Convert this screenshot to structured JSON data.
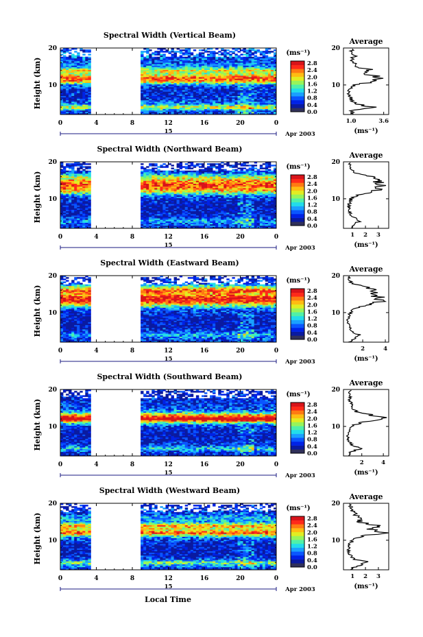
{
  "colorbar_unit": "(ms⁻¹)",
  "colorbar_ticks": [
    "2.8",
    "2.4",
    "2.0",
    "1.6",
    "1.2",
    "0.8",
    "0.4",
    "0.0"
  ],
  "colorbar_colors": [
    "#30305a",
    "#0a1aa0",
    "#0022e6",
    "#0a56ff",
    "#1aa0ff",
    "#22dcea",
    "#50f0a8",
    "#98f45a",
    "#e2ec22",
    "#ffbc12",
    "#ff7a12",
    "#ff2a1a",
    "#d8141a"
  ],
  "date_label": "Apr 2003",
  "day_label": "15",
  "xlabel_common": "Local Time",
  "average_title": "Average",
  "average_xunit": "(ms⁻¹)",
  "chart_data": [
    {
      "type": "heatmap",
      "title": "Spectral Width (Vertical Beam)",
      "ylabel": "Height (km)",
      "x_ticks": [
        "0",
        "4",
        "8",
        "12",
        "16",
        "20",
        "0"
      ],
      "y_ticks": [
        "20",
        "10"
      ],
      "xlim": [
        0,
        24
      ],
      "ylim": [
        2,
        20
      ],
      "missing_intervals_hours": [
        [
          3.5,
          8.8
        ]
      ],
      "profile": {
        "title": "Average",
        "x_ticks": [
          "1.0",
          "3.6"
        ],
        "xlim": [
          0.4,
          4.0
        ],
        "y_ticks": [
          "20",
          "10"
        ],
        "heights_km": [
          2,
          3,
          4,
          5,
          6,
          7,
          8,
          9,
          10,
          11,
          12,
          13,
          14,
          15,
          16,
          17,
          18,
          19,
          20
        ],
        "values": [
          1.0,
          1.1,
          2.6,
          1.3,
          1.0,
          0.9,
          0.8,
          0.9,
          1.3,
          2.9,
          3.3,
          2.2,
          2.6,
          1.5,
          1.2,
          1.1,
          1.3,
          1.0,
          1.1
        ]
      }
    },
    {
      "type": "heatmap",
      "title": "Spectral Width (Northward Beam)",
      "ylabel": "Height (km)",
      "x_ticks": [
        "0",
        "4",
        "8",
        "12",
        "16",
        "20",
        "0"
      ],
      "y_ticks": [
        "20",
        "10"
      ],
      "xlim": [
        0,
        24
      ],
      "ylim": [
        2,
        20
      ],
      "missing_intervals_hours": [
        [
          3.5,
          8.8
        ]
      ],
      "profile": {
        "title": "Average",
        "x_ticks": [
          "1",
          "2",
          "3"
        ],
        "xlim": [
          0.3,
          3.8
        ],
        "y_ticks": [
          "20",
          "10"
        ],
        "heights_km": [
          2,
          3,
          4,
          5,
          6,
          7,
          8,
          9,
          10,
          11,
          12,
          13,
          14,
          15,
          16,
          17,
          18,
          19,
          20
        ],
        "values": [
          0.9,
          1.1,
          1.5,
          1.0,
          0.8,
          0.7,
          0.7,
          0.8,
          0.9,
          1.4,
          2.6,
          3.1,
          3.3,
          2.8,
          2.3,
          1.2,
          0.9,
          0.8,
          0.7
        ]
      }
    },
    {
      "type": "heatmap",
      "title": "Spectral Width (Eastward Beam)",
      "ylabel": "Height (km)",
      "x_ticks": [
        "0",
        "4",
        "8",
        "12",
        "16",
        "20",
        "0"
      ],
      "y_ticks": [
        "20",
        "10"
      ],
      "xlim": [
        0,
        24
      ],
      "ylim": [
        2,
        20
      ],
      "missing_intervals_hours": [
        [
          3.5,
          8.8
        ]
      ],
      "profile": {
        "title": "Average",
        "x_ticks": [
          "2",
          "4"
        ],
        "xlim": [
          0.3,
          4.3
        ],
        "y_ticks": [
          "20",
          "10"
        ],
        "heights_km": [
          2,
          3,
          4,
          5,
          6,
          7,
          8,
          9,
          10,
          11,
          12,
          13,
          14,
          15,
          16,
          17,
          18,
          19,
          20
        ],
        "values": [
          0.8,
          1.2,
          1.6,
          1.0,
          0.8,
          0.7,
          0.7,
          0.8,
          0.9,
          1.2,
          2.2,
          3.4,
          3.6,
          2.8,
          3.3,
          2.2,
          1.0,
          0.8,
          0.7
        ]
      }
    },
    {
      "type": "heatmap",
      "title": "Spectral Width (Southward Beam)",
      "ylabel": "Height (km)",
      "x_ticks": [
        "0",
        "4",
        "8",
        "12",
        "16",
        "20",
        "0"
      ],
      "y_ticks": [
        "20",
        "10"
      ],
      "xlim": [
        0,
        24
      ],
      "ylim": [
        2,
        20
      ],
      "missing_intervals_hours": [
        [
          3.5,
          8.8
        ]
      ],
      "profile": {
        "title": "Average",
        "x_ticks": [
          "2",
          "4"
        ],
        "xlim": [
          0.3,
          4.5
        ],
        "y_ticks": [
          "20",
          "10"
        ],
        "heights_km": [
          2,
          3,
          4,
          5,
          6,
          7,
          8,
          9,
          10,
          11,
          12,
          13,
          14,
          15,
          16,
          17,
          18,
          19,
          20
        ],
        "values": [
          0.8,
          1.0,
          1.8,
          1.1,
          0.8,
          0.7,
          0.7,
          0.8,
          1.0,
          1.9,
          4.2,
          3.0,
          1.5,
          1.1,
          1.0,
          0.9,
          0.9,
          0.8,
          0.9
        ]
      }
    },
    {
      "type": "heatmap",
      "title": "Spectral Width (Westward Beam)",
      "ylabel": "Height (km)",
      "x_ticks": [
        "0",
        "4",
        "8",
        "12",
        "16",
        "20",
        "0"
      ],
      "y_ticks": [
        "20",
        "10"
      ],
      "xlim": [
        0,
        24
      ],
      "ylim": [
        2,
        20
      ],
      "missing_intervals_hours": [
        [
          3.5,
          8.8
        ]
      ],
      "profile": {
        "title": "Average",
        "x_ticks": [
          "1",
          "2",
          "3"
        ],
        "xlim": [
          0.3,
          3.8
        ],
        "y_ticks": [
          "20",
          "10"
        ],
        "heights_km": [
          2,
          3,
          4,
          5,
          6,
          7,
          8,
          9,
          10,
          11,
          12,
          13,
          14,
          15,
          16,
          17,
          18,
          19,
          20
        ],
        "values": [
          0.8,
          1.3,
          2.2,
          1.0,
          0.8,
          0.7,
          0.7,
          0.8,
          1.0,
          1.6,
          3.3,
          2.4,
          2.9,
          1.5,
          1.6,
          1.2,
          1.0,
          0.9,
          0.8
        ]
      }
    }
  ]
}
